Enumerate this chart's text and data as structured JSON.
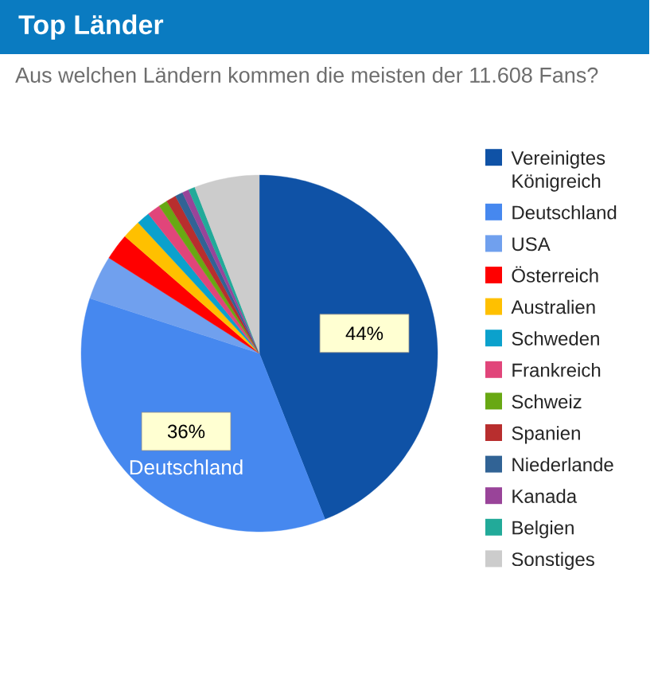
{
  "chart_data": {
    "type": "pie",
    "title": "Top Länder",
    "subtitle": "Aus welchen Ländern kommen die meisten der 11.608 Fans?",
    "categories": [
      "Vereinigtes Königreich",
      "Deutschland",
      "USA",
      "Österreich",
      "Australien",
      "Schweden",
      "Frankreich",
      "Schweiz",
      "Spanien",
      "Niederlande",
      "Kanada",
      "Belgien",
      "Sonstiges"
    ],
    "values": [
      44,
      36,
      4,
      2.4,
      1.7,
      1.2,
      1.2,
      0.8,
      0.9,
      0.7,
      0.6,
      0.6,
      5.9
    ],
    "colors": [
      "#0f52a6",
      "#4688ef",
      "#70a0ee",
      "#ff0000",
      "#ffc000",
      "#0ba1cc",
      "#e1457a",
      "#68a813",
      "#b82e2e",
      "#316395",
      "#994499",
      "#22aa99",
      "#cccccc"
    ],
    "value_labels": [
      "44%",
      "36%",
      null,
      null,
      null,
      null,
      null,
      null,
      null,
      null,
      null,
      null,
      null
    ],
    "annotations": [
      {
        "text": "Deutschland",
        "x": "Deutschland"
      }
    ],
    "legend": "right"
  }
}
